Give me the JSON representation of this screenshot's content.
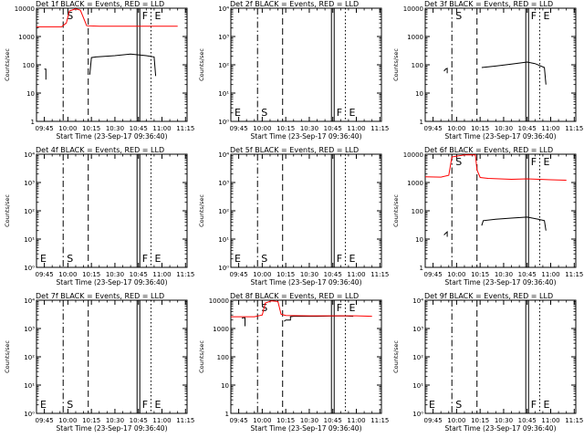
{
  "chart_data": [
    {
      "type": "line",
      "title": "Det 1f BLACK = Events, RED = LLD",
      "xlabel": "Start Time (23-Sep-17 09:36:40)",
      "ylabel": "Counts/sec",
      "yscale": "log",
      "ylim": [
        1,
        10000
      ],
      "ytick_labels": [
        "1",
        "10",
        "100",
        "1000",
        "10000"
      ],
      "xlim": [
        "09:40",
        "11:16"
      ],
      "x_ticks": [
        "09:45",
        "10:00",
        "10:15",
        "10:30",
        "10:45",
        "11:00",
        "11:15"
      ],
      "markers": [
        {
          "label": "S",
          "x": "09:57",
          "style": "dashdot"
        },
        {
          "label": "",
          "x": "10:13",
          "style": "dashed"
        },
        {
          "label": "F",
          "x": "10:45",
          "style": "solid"
        },
        {
          "label": "E",
          "x": "10:53",
          "style": "dotted"
        }
      ],
      "series": [
        {
          "name": "Events",
          "color": "#000000",
          "segments": [
            [
              [
                "09:45",
                70
              ],
              [
                "09:46",
                70
              ],
              [
                "09:46",
                30
              ]
            ],
            [
              [
                "10:14",
                45
              ],
              [
                "10:15",
                180
              ],
              [
                "10:18",
                190
              ],
              [
                "10:30",
                210
              ],
              [
                "10:40",
                240
              ],
              [
                "10:50",
                210
              ],
              [
                "10:55",
                190
              ],
              [
                "10:56",
                40
              ]
            ]
          ]
        },
        {
          "name": "LLD",
          "color": "#ff0000",
          "segments": [
            [
              [
                "09:40",
                2200
              ],
              [
                "09:56",
                2200
              ],
              [
                "09:59",
                3000
              ],
              [
                "10:01",
                8000
              ],
              [
                "10:05",
                9500
              ],
              [
                "10:08",
                8500
              ],
              [
                "10:12",
                2400
              ],
              [
                "10:20",
                2300
              ],
              [
                "11:00",
                2300
              ],
              [
                "11:10",
                2300
              ]
            ]
          ]
        }
      ]
    },
    {
      "type": "line",
      "title": "Det 2f BLACK = Events, RED = LLD",
      "xlabel": "Start Time (23-Sep-17 09:36:40)",
      "ylabel": "Counts/sec",
      "yscale": "log",
      "ylim": [
        1,
        10000
      ],
      "ytick_labels": [
        "10⁰",
        "10¹",
        "10²",
        "10³",
        "10⁴"
      ],
      "xlim": [
        "09:40",
        "11:16"
      ],
      "x_ticks": [
        "09:45",
        "10:00",
        "10:15",
        "10:30",
        "10:45",
        "11:00",
        "11:15"
      ],
      "markers": [
        {
          "label": "E",
          "x": "09:40",
          "style": "none"
        },
        {
          "label": "S",
          "x": "09:57",
          "style": "dashdot"
        },
        {
          "label": "",
          "x": "10:13",
          "style": "dashed"
        },
        {
          "label": "F",
          "x": "10:45",
          "style": "solid"
        },
        {
          "label": "E",
          "x": "10:53",
          "style": "dotted"
        }
      ],
      "series": []
    },
    {
      "type": "line",
      "title": "Det 3f BLACK = Events, RED = LLD",
      "xlabel": "Start Time (23-Sep-17 09:36:40)",
      "ylabel": "Counts/sec",
      "yscale": "log",
      "ylim": [
        1,
        10000
      ],
      "ytick_labels": [
        "1",
        "10",
        "100",
        "1000",
        "10000"
      ],
      "xlim": [
        "09:40",
        "11:16"
      ],
      "x_ticks": [
        "09:45",
        "10:00",
        "10:15",
        "10:30",
        "10:45",
        "11:00",
        "11:15"
      ],
      "markers": [
        {
          "label": "S",
          "x": "09:57",
          "style": "dashdot"
        },
        {
          "label": "",
          "x": "10:13",
          "style": "dashed"
        },
        {
          "label": "F",
          "x": "10:45",
          "style": "solid"
        },
        {
          "label": "E",
          "x": "10:53",
          "style": "dotted"
        }
      ],
      "series": [
        {
          "name": "Events",
          "color": "#000000",
          "segments": [
            [
              [
                "09:52",
                60
              ],
              [
                "09:53",
                70
              ],
              [
                "09:54",
                75
              ],
              [
                "09:54",
                50
              ]
            ],
            [
              [
                "10:16",
                80
              ],
              [
                "10:25",
                90
              ],
              [
                "10:35",
                105
              ],
              [
                "10:45",
                125
              ],
              [
                "10:50",
                110
              ],
              [
                "10:56",
                80
              ],
              [
                "10:57",
                20
              ]
            ]
          ]
        }
      ]
    },
    {
      "type": "line",
      "title": "Det 4f BLACK = Events, RED = LLD",
      "xlabel": "Start Time (23-Sep-17 09:36:40)",
      "ylabel": "Counts/sec",
      "yscale": "log",
      "ylim": [
        1,
        10000
      ],
      "ytick_labels": [
        "10⁰",
        "10¹",
        "10²",
        "10³",
        "10⁴"
      ],
      "xlim": [
        "09:40",
        "11:16"
      ],
      "x_ticks": [
        "09:45",
        "10:00",
        "10:15",
        "10:30",
        "10:45",
        "11:00",
        "11:15"
      ],
      "markers": [
        {
          "label": "E",
          "x": "09:40",
          "style": "none"
        },
        {
          "label": "S",
          "x": "09:57",
          "style": "dashdot"
        },
        {
          "label": "",
          "x": "10:13",
          "style": "dashed"
        },
        {
          "label": "F",
          "x": "10:45",
          "style": "solid"
        },
        {
          "label": "E",
          "x": "10:53",
          "style": "dotted"
        }
      ],
      "series": []
    },
    {
      "type": "line",
      "title": "Det 5f BLACK = Events, RED = LLD",
      "xlabel": "Start Time (23-Sep-17 09:36:40)",
      "ylabel": "Counts/sec",
      "yscale": "log",
      "ylim": [
        1,
        10000
      ],
      "ytick_labels": [
        "10⁰",
        "10¹",
        "10²",
        "10³",
        "10⁴"
      ],
      "xlim": [
        "09:40",
        "11:16"
      ],
      "x_ticks": [
        "09:45",
        "10:00",
        "10:15",
        "10:30",
        "10:45",
        "11:00",
        "11:15"
      ],
      "markers": [
        {
          "label": "E",
          "x": "09:40",
          "style": "none"
        },
        {
          "label": "S",
          "x": "09:57",
          "style": "dashdot"
        },
        {
          "label": "",
          "x": "10:13",
          "style": "dashed"
        },
        {
          "label": "F",
          "x": "10:45",
          "style": "solid"
        },
        {
          "label": "E",
          "x": "10:53",
          "style": "dotted"
        }
      ],
      "series": []
    },
    {
      "type": "line",
      "title": "Det 6f BLACK = Events, RED = LLD",
      "xlabel": "Start Time (23-Sep-17 09:36:40)",
      "ylabel": "Counts/sec",
      "yscale": "log",
      "ylim": [
        1,
        10000
      ],
      "ytick_labels": [
        "1",
        "10",
        "100",
        "1000",
        "10000"
      ],
      "xlim": [
        "09:40",
        "11:16"
      ],
      "x_ticks": [
        "09:45",
        "10:00",
        "10:15",
        "10:30",
        "10:45",
        "11:00",
        "11:15"
      ],
      "markers": [
        {
          "label": "S",
          "x": "09:57",
          "style": "dashdot"
        },
        {
          "label": "",
          "x": "10:13",
          "style": "dashed"
        },
        {
          "label": "F",
          "x": "10:45",
          "style": "solid"
        },
        {
          "label": "E",
          "x": "10:53",
          "style": "dotted"
        }
      ],
      "series": [
        {
          "name": "Events",
          "color": "#000000",
          "segments": [
            [
              [
                "09:52",
                14
              ],
              [
                "09:53",
                16
              ],
              [
                "09:54",
                18
              ],
              [
                "09:54",
                12
              ]
            ],
            [
              [
                "10:16",
                30
              ],
              [
                "10:17",
                45
              ],
              [
                "10:25",
                50
              ],
              [
                "10:35",
                55
              ],
              [
                "10:45",
                60
              ],
              [
                "10:52",
                50
              ],
              [
                "10:56",
                45
              ],
              [
                "10:57",
                20
              ]
            ]
          ]
        },
        {
          "name": "LLD",
          "color": "#ff0000",
          "segments": [
            [
              [
                "09:40",
                1600
              ],
              [
                "09:50",
                1550
              ],
              [
                "09:55",
                1800
              ],
              [
                "09:57",
                8000
              ],
              [
                "10:05",
                9500
              ],
              [
                "10:12",
                9500
              ],
              [
                "10:13",
                2800
              ],
              [
                "10:15",
                1500
              ],
              [
                "10:20",
                1400
              ],
              [
                "10:35",
                1300
              ],
              [
                "10:45",
                1350
              ],
              [
                "11:00",
                1250
              ],
              [
                "11:10",
                1200
              ]
            ]
          ]
        }
      ]
    },
    {
      "type": "line",
      "title": "Det 7f BLACK = Events, RED = LLD",
      "xlabel": "Start Time (23-Sep-17 09:36:40)",
      "ylabel": "Counts/sec",
      "yscale": "log",
      "ylim": [
        1,
        10000
      ],
      "ytick_labels": [
        "10⁰",
        "10¹",
        "10²",
        "10³",
        "10⁴"
      ],
      "xlim": [
        "09:40",
        "11:16"
      ],
      "x_ticks": [
        "09:45",
        "10:00",
        "10:15",
        "10:30",
        "10:45",
        "11:00",
        "11:15"
      ],
      "markers": [
        {
          "label": "E",
          "x": "09:40",
          "style": "none"
        },
        {
          "label": "S",
          "x": "09:57",
          "style": "dashdot"
        },
        {
          "label": "",
          "x": "10:13",
          "style": "dashed"
        },
        {
          "label": "F",
          "x": "10:45",
          "style": "solid"
        },
        {
          "label": "E",
          "x": "10:53",
          "style": "dotted"
        }
      ],
      "series": []
    },
    {
      "type": "line",
      "title": "Det 8f BLACK = Events, RED = LLD",
      "xlabel": "Start Time (23-Sep-17 09:36:40)",
      "ylabel": "Counts/sec",
      "yscale": "log",
      "ylim": [
        1,
        10000
      ],
      "ytick_labels": [
        "1",
        "10",
        "100",
        "1000",
        "10000"
      ],
      "xlim": [
        "09:40",
        "11:16"
      ],
      "x_ticks": [
        "09:45",
        "10:00",
        "10:15",
        "10:30",
        "10:45",
        "11:00",
        "11:15"
      ],
      "markers": [
        {
          "label": "S",
          "x": "09:57",
          "style": "dashdot"
        },
        {
          "label": "",
          "x": "10:13",
          "style": "dashed"
        },
        {
          "label": "F",
          "x": "10:45",
          "style": "solid"
        },
        {
          "label": "E",
          "x": "10:53",
          "style": "dotted"
        }
      ],
      "series": [
        {
          "name": "Events",
          "color": "#000000",
          "segments": [
            [
              [
                "09:47",
                2300
              ],
              [
                "09:48",
                2400
              ],
              [
                "09:49",
                2400
              ],
              [
                "09:49",
                1200
              ]
            ],
            [
              [
                "10:14",
                1800
              ],
              [
                "10:15",
                2000
              ],
              [
                "10:18",
                2000
              ],
              [
                "10:18",
                2600
              ],
              [
                "10:20",
                2700
              ],
              [
                "10:35",
                2700
              ],
              [
                "10:50",
                2800
              ],
              [
                "10:58",
                2700
              ]
            ]
          ]
        },
        {
          "name": "LLD",
          "color": "#ff0000",
          "segments": [
            [
              [
                "09:40",
                2600
              ],
              [
                "09:55",
                2600
              ],
              [
                "10:00",
                3000
              ],
              [
                "10:02",
                8000
              ],
              [
                "10:06",
                9500
              ],
              [
                "10:10",
                9000
              ],
              [
                "10:12",
                3200
              ],
              [
                "10:15",
                2900
              ],
              [
                "10:30",
                2800
              ],
              [
                "11:00",
                2800
              ],
              [
                "11:10",
                2700
              ]
            ]
          ]
        }
      ]
    },
    {
      "type": "line",
      "title": "Det 9f BLACK = Events, RED = LLD",
      "xlabel": "Start Time (23-Sep-17 09:36:40)",
      "ylabel": "Counts/sec",
      "yscale": "log",
      "ylim": [
        1,
        10000
      ],
      "ytick_labels": [
        "10⁰",
        "10¹",
        "10²",
        "10³",
        "10⁴"
      ],
      "xlim": [
        "09:40",
        "11:16"
      ],
      "x_ticks": [
        "09:45",
        "10:00",
        "10:15",
        "10:30",
        "10:45",
        "11:00",
        "11:15"
      ],
      "markers": [
        {
          "label": "E",
          "x": "09:40",
          "style": "none"
        },
        {
          "label": "S",
          "x": "09:57",
          "style": "dashdot"
        },
        {
          "label": "",
          "x": "10:13",
          "style": "dashed"
        },
        {
          "label": "F",
          "x": "10:45",
          "style": "solid"
        },
        {
          "label": "E",
          "x": "10:53",
          "style": "dotted"
        }
      ],
      "series": []
    }
  ]
}
